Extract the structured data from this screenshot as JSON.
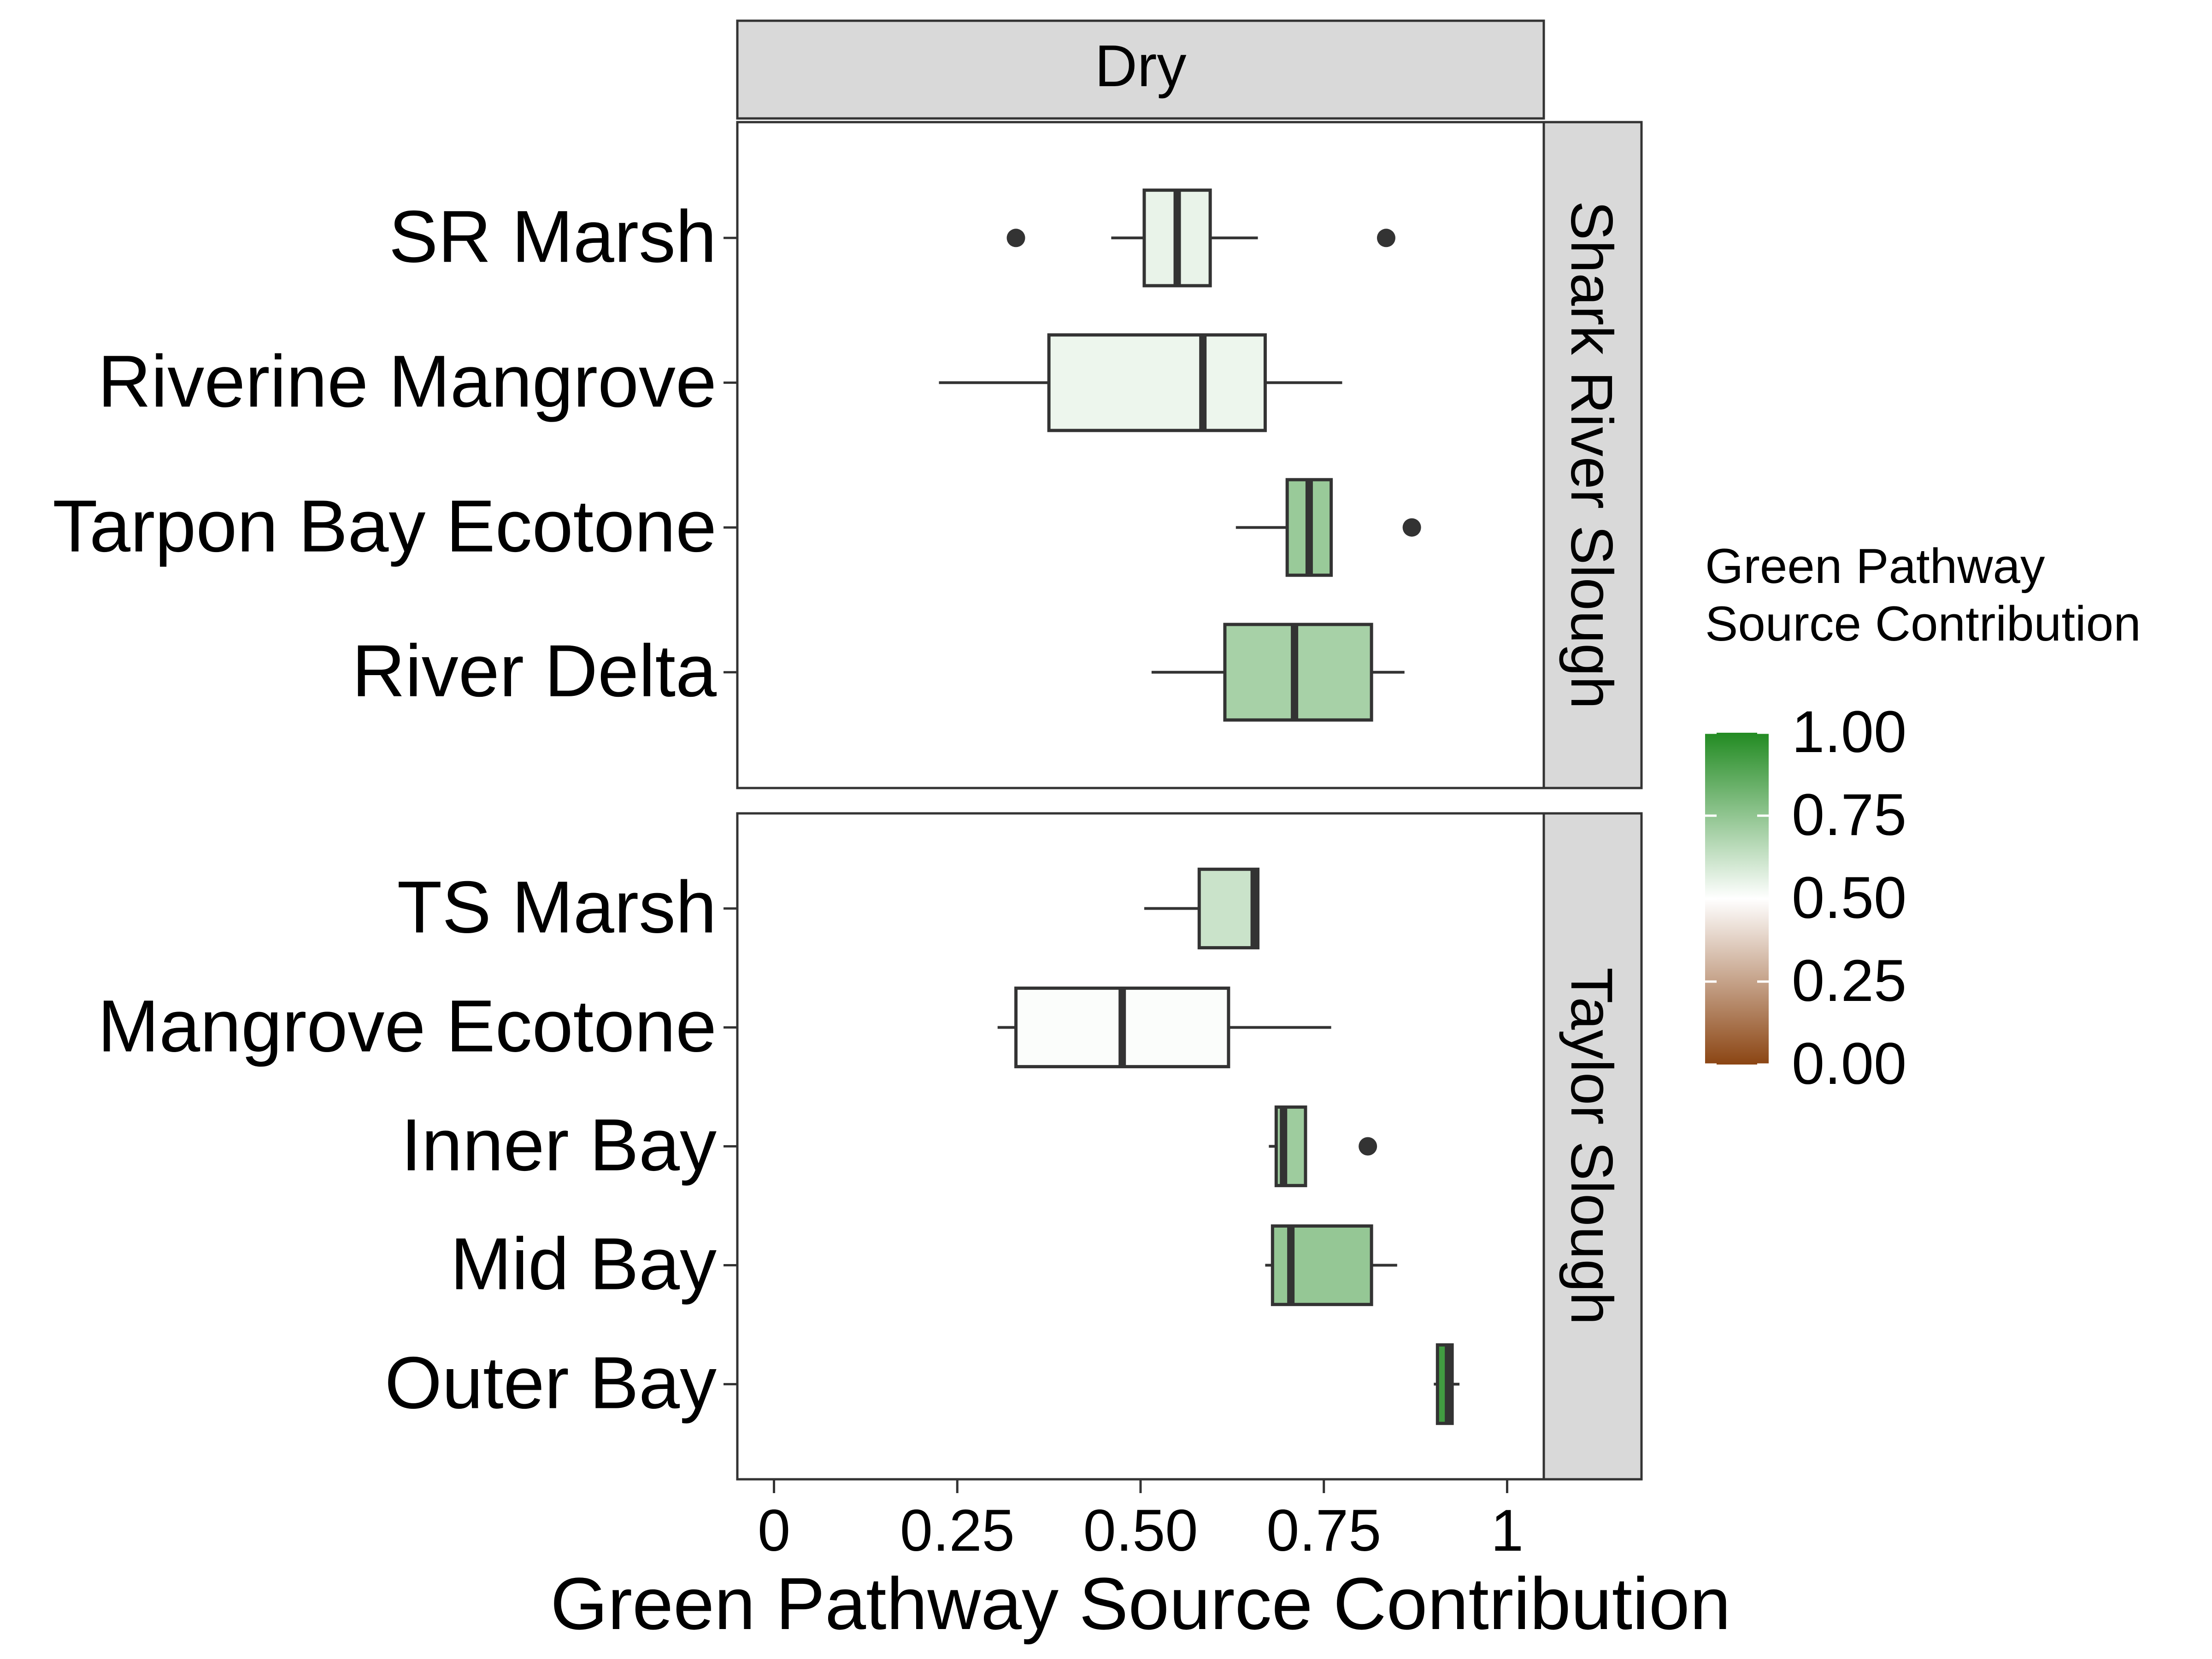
{
  "chart_data": {
    "type": "box",
    "xlabel": "Green Pathway Source Contribution",
    "ylabel": "",
    "xlim": [
      -0.05,
      1.05
    ],
    "xticks": [
      0,
      0.25,
      0.5,
      0.75,
      1
    ],
    "xtick_labels": [
      "0",
      "0.25",
      "0.50",
      "0.75",
      "1"
    ],
    "grid": false,
    "column_facets": [
      "Dry"
    ],
    "panels": [
      {
        "name": "Shark River Slough",
        "sites": [
          {
            "label": "SR Marsh",
            "whisker_low": 0.46,
            "q1": 0.505,
            "median": 0.55,
            "q3": 0.595,
            "whisker_high": 0.66,
            "outliers": [
              0.33,
              0.835
            ],
            "fill_value": 0.55
          },
          {
            "label": "Riverine Mangrove",
            "whisker_low": 0.225,
            "q1": 0.375,
            "median": 0.585,
            "q3": 0.67,
            "whisker_high": 0.775,
            "outliers": [],
            "fill_value": 0.54
          },
          {
            "label": "Tarpon Bay Ecotone",
            "whisker_low": 0.63,
            "q1": 0.7,
            "median": 0.73,
            "q3": 0.76,
            "whisker_high": 0.76,
            "outliers": [
              0.87
            ],
            "fill_value": 0.73
          },
          {
            "label": "River Delta",
            "whisker_low": 0.515,
            "q1": 0.615,
            "median": 0.71,
            "q3": 0.815,
            "whisker_high": 0.86,
            "outliers": [],
            "fill_value": 0.7
          }
        ]
      },
      {
        "name": "Taylor Slough",
        "sites": [
          {
            "label": "TS Marsh",
            "whisker_low": 0.505,
            "q1": 0.58,
            "median": 0.655,
            "q3": 0.66,
            "whisker_high": 0.66,
            "outliers": [],
            "fill_value": 0.62
          },
          {
            "label": "Mangrove Ecotone",
            "whisker_low": 0.305,
            "q1": 0.33,
            "median": 0.475,
            "q3": 0.62,
            "whisker_high": 0.76,
            "outliers": [],
            "fill_value": 0.51
          },
          {
            "label": "Inner Bay",
            "whisker_low": 0.675,
            "q1": 0.685,
            "median": 0.695,
            "q3": 0.725,
            "whisker_high": 0.725,
            "outliers": [
              0.81
            ],
            "fill_value": 0.72
          },
          {
            "label": "Mid Bay",
            "whisker_low": 0.67,
            "q1": 0.68,
            "median": 0.705,
            "q3": 0.815,
            "whisker_high": 0.85,
            "outliers": [],
            "fill_value": 0.74
          },
          {
            "label": "Outer Bay",
            "whisker_low": 0.9,
            "q1": 0.905,
            "median": 0.92,
            "q3": 0.925,
            "whisker_high": 0.935,
            "outliers": [],
            "fill_value": 0.93
          }
        ]
      }
    ],
    "legend": {
      "title_lines": [
        "Green Pathway",
        "Source Contribution"
      ],
      "values": [
        1.0,
        0.75,
        0.5,
        0.25,
        0.0
      ],
      "labels": [
        "1.00",
        "0.75",
        "0.50",
        "0.25",
        "0.00"
      ],
      "colors": {
        "low": "#8b4513",
        "mid": "#ffffff",
        "high": "#228b22"
      },
      "placement": "right"
    }
  }
}
